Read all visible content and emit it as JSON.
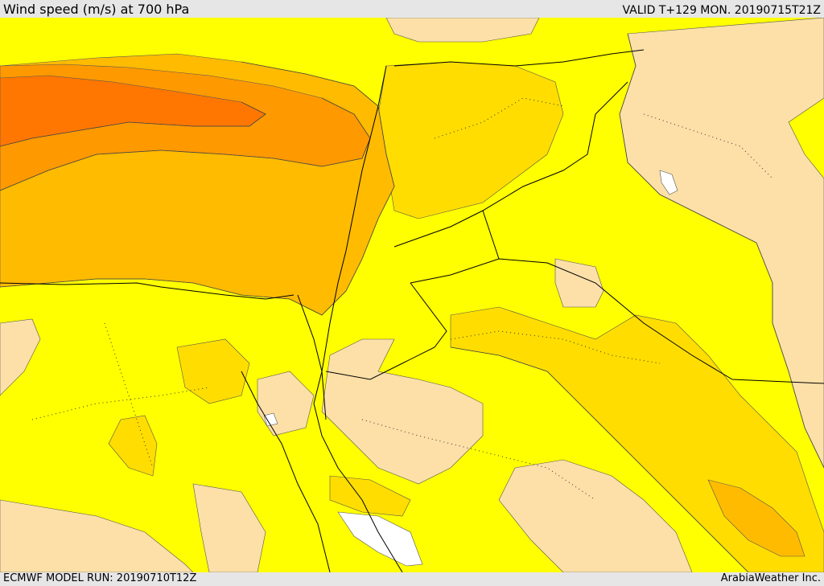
{
  "header": {
    "title": "Wind speed (m/s) at 700 hPa",
    "valid": "VALID T+129 MON. 20190715T21Z"
  },
  "footer": {
    "model_run": "ECMWF MODEL RUN: 20190710T12Z",
    "credit": "ArabiaWeather Inc."
  },
  "map": {
    "colors": {
      "calm": "#fde0a8",
      "light": "#ffff00",
      "moderate": "#ffdd00",
      "fresh": "#ffbb00",
      "strong": "#ff9900",
      "very_strong": "#ff7700",
      "water": "#ffffff"
    }
  }
}
